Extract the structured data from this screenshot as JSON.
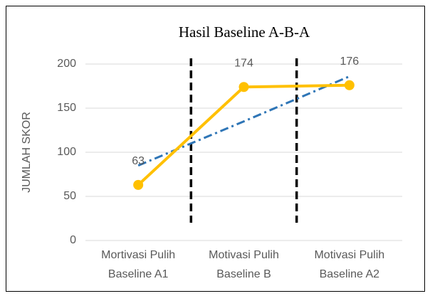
{
  "chart_data": {
    "type": "line",
    "title": "Hasil Baseline A-B-A",
    "y_label": "JUMLAH SKOR",
    "categories": [
      [
        "Mortivasi Pulih",
        "Baseline A1"
      ],
      [
        "Motivasi Pulih",
        "Baseline B"
      ],
      [
        "Motivasi Pulih",
        "Baseline A2"
      ]
    ],
    "series": [
      {
        "color": "#ffc000",
        "values": [
          63,
          174,
          176
        ],
        "data_labels": true
      },
      {
        "color": "#2e75b6",
        "values": [
          85,
          135,
          186
        ],
        "dash": "12 5 3 5",
        "markers": false
      }
    ],
    "ylim": [
      0,
      200
    ],
    "yticks": [
      0,
      50,
      100,
      150,
      200
    ],
    "grid": true
  }
}
